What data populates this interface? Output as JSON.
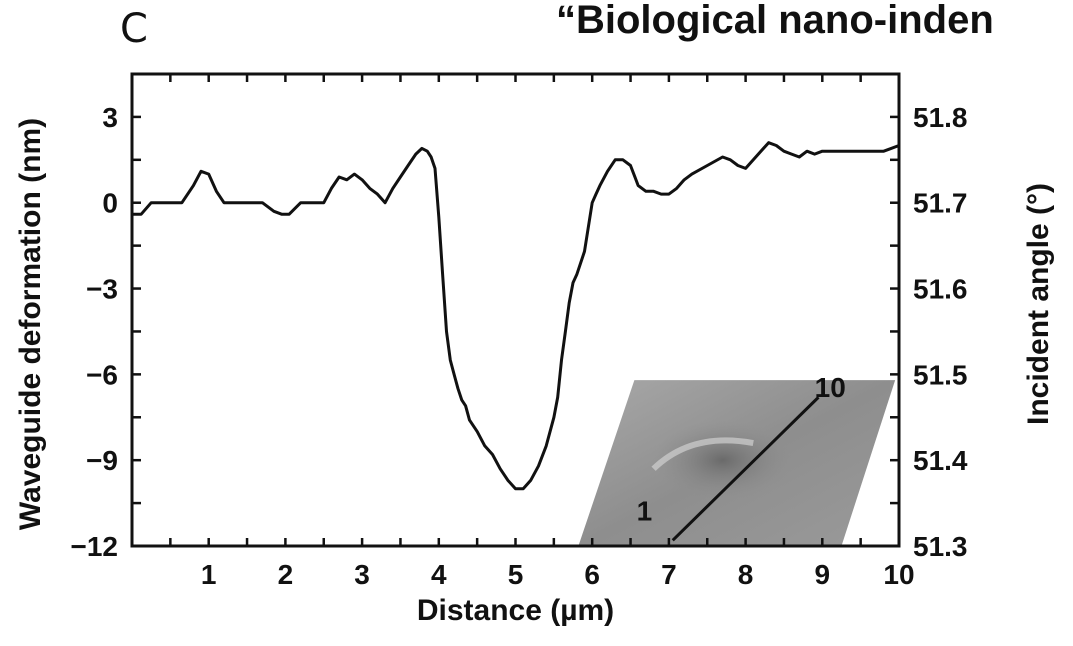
{
  "panel_label": "C",
  "header_title": "“Biological nano-inden",
  "chart_data": {
    "type": "line",
    "xlabel": "Distance (µm)",
    "ylabel": "Waveguide deformation (nm)",
    "y2label": "Incident angle (°)",
    "xlim": [
      0,
      10
    ],
    "ylim": [
      -12,
      4.5
    ],
    "y2lim": [
      51.3,
      51.85
    ],
    "grid": false,
    "x_ticks": [
      1,
      2,
      3,
      4,
      5,
      6,
      7,
      8,
      9,
      10
    ],
    "y_ticks": [
      3,
      0,
      -3,
      -6,
      -9,
      -12
    ],
    "y2_ticks": [
      51.8,
      51.7,
      51.6,
      51.5,
      51.4,
      51.3
    ],
    "x_tick_labels": [
      "1",
      "2",
      "3",
      "4",
      "5",
      "6",
      "7",
      "8",
      "9",
      "10"
    ],
    "y_tick_labels": [
      "3",
      "0",
      "−3",
      "−6",
      "−9",
      "−12"
    ],
    "y2_tick_labels": [
      "51.8",
      "51.7",
      "51.6",
      "51.5",
      "51.4",
      "51.3"
    ],
    "series": [
      {
        "x": [
          0.0,
          0.12,
          0.25,
          0.35,
          0.5,
          0.65,
          0.8,
          0.9,
          1.0,
          1.1,
          1.2,
          1.35,
          1.5,
          1.7,
          1.85,
          1.95,
          2.05,
          2.2,
          2.35,
          2.5,
          2.6,
          2.7,
          2.8,
          2.9,
          3.0,
          3.1,
          3.2,
          3.3,
          3.4,
          3.5,
          3.6,
          3.7,
          3.78,
          3.85,
          3.9,
          3.95,
          4.0,
          4.05,
          4.1,
          4.15,
          4.2,
          4.25,
          4.3,
          4.35,
          4.4,
          4.5,
          4.6,
          4.7,
          4.8,
          4.9,
          5.0,
          5.1,
          5.2,
          5.3,
          5.4,
          5.5,
          5.55,
          5.6,
          5.65,
          5.7,
          5.75,
          5.8,
          5.9,
          6.0,
          6.05,
          6.1,
          6.2,
          6.3,
          6.4,
          6.5,
          6.6,
          6.7,
          6.8,
          6.9,
          7.0,
          7.1,
          7.2,
          7.3,
          7.5,
          7.7,
          7.8,
          7.9,
          8.0,
          8.1,
          8.2,
          8.3,
          8.4,
          8.5,
          8.6,
          8.7,
          8.8,
          8.9,
          9.0,
          9.2,
          9.4,
          9.6,
          9.8,
          10.0
        ],
        "values": [
          -0.4,
          -0.4,
          0.0,
          0.0,
          0.0,
          0.0,
          0.6,
          1.1,
          1.0,
          0.4,
          0.0,
          0.0,
          0.0,
          0.0,
          -0.3,
          -0.4,
          -0.4,
          0.0,
          0.0,
          0.0,
          0.5,
          0.9,
          0.8,
          1.0,
          0.8,
          0.5,
          0.3,
          0.0,
          0.5,
          0.9,
          1.3,
          1.7,
          1.9,
          1.8,
          1.6,
          1.2,
          -0.5,
          -2.5,
          -4.5,
          -5.5,
          -6.0,
          -6.5,
          -6.9,
          -7.1,
          -7.6,
          -8.0,
          -8.5,
          -8.8,
          -9.3,
          -9.7,
          -10.0,
          -10.0,
          -9.7,
          -9.2,
          -8.5,
          -7.5,
          -6.8,
          -5.5,
          -4.5,
          -3.5,
          -2.8,
          -2.5,
          -1.7,
          0.0,
          0.3,
          0.6,
          1.1,
          1.5,
          1.5,
          1.3,
          0.6,
          0.4,
          0.4,
          0.3,
          0.3,
          0.5,
          0.8,
          1.0,
          1.3,
          1.6,
          1.5,
          1.3,
          1.2,
          1.5,
          1.8,
          2.1,
          2.0,
          1.8,
          1.7,
          1.6,
          1.8,
          1.7,
          1.8,
          1.8,
          1.8,
          1.8,
          1.8,
          2.0
        ]
      }
    ],
    "inset": {
      "label_start": "1",
      "label_end": "10"
    }
  }
}
